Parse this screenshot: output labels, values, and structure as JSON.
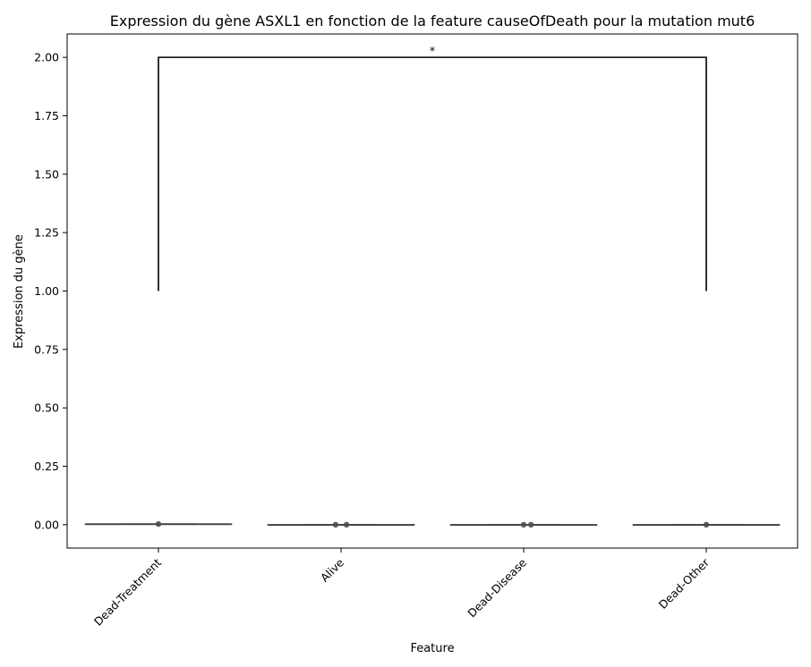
{
  "chart_data": {
    "type": "box",
    "title": "Expression du gène ASXL1 en fonction de la feature causeOfDeath pour la mutation mut6",
    "xlabel": "Feature",
    "ylabel": "Expression du gène",
    "categories": [
      "Dead-Treatment",
      "Alive",
      "Dead-Disease",
      "Dead-Other"
    ],
    "ylim": [
      -0.1,
      2.1
    ],
    "yticks": [
      0.0,
      0.25,
      0.5,
      0.75,
      1.0,
      1.25,
      1.5,
      1.75,
      2.0
    ],
    "ytick_labels": [
      "0.00",
      "0.25",
      "0.50",
      "0.75",
      "1.00",
      "1.25",
      "1.50",
      "1.75",
      "2.00"
    ],
    "boxes": [
      {
        "category": "Dead-Treatment",
        "median": 0.003,
        "q1": 0.003,
        "q3": 0.003,
        "whisker_low": 0.003,
        "whisker_high": 0.003
      },
      {
        "category": "Alive",
        "median": 0.0,
        "q1": 0.0,
        "q3": 0.0,
        "whisker_low": 0.0,
        "whisker_high": 0.0
      },
      {
        "category": "Dead-Disease",
        "median": 0.0,
        "q1": 0.0,
        "q3": 0.0,
        "whisker_low": 0.0,
        "whisker_high": 0.0
      },
      {
        "category": "Dead-Other",
        "median": 0.0,
        "q1": 0.0,
        "q3": 0.0,
        "whisker_low": 0.0,
        "whisker_high": 0.0
      }
    ],
    "points": [
      {
        "category": "Dead-Treatment",
        "y": 0.003,
        "jitter": 0.0
      },
      {
        "category": "Alive",
        "y": 0.0,
        "jitter": -0.03
      },
      {
        "category": "Alive",
        "y": 0.0,
        "jitter": 0.03
      },
      {
        "category": "Dead-Disease",
        "y": 0.0,
        "jitter": 0.0
      },
      {
        "category": "Dead-Disease",
        "y": 0.0,
        "jitter": 0.04
      },
      {
        "category": "Dead-Other",
        "y": 0.0,
        "jitter": 0.0
      }
    ],
    "annotations": [
      {
        "type": "significance-bracket",
        "from": "Dead-Treatment",
        "to": "Dead-Other",
        "y_bottom": 1.0,
        "y_top": 2.0,
        "label": "*"
      }
    ],
    "grid": false,
    "colors": {
      "box_line": "#3f3f3f",
      "point": "#4d4d4d",
      "bracket": "#000000",
      "axes": "#000000"
    }
  }
}
